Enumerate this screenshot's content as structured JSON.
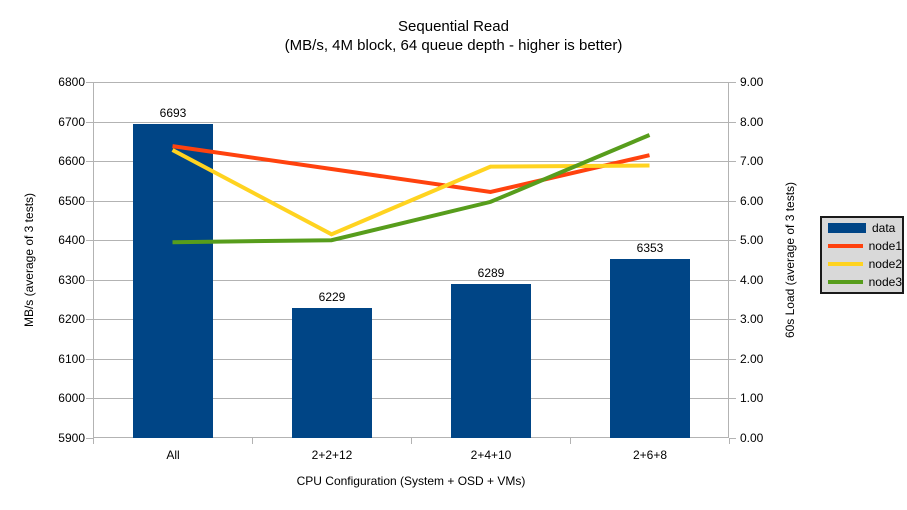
{
  "chart_data": {
    "type": "bar+line",
    "title": "Sequential Read",
    "subtitle": "(MB/s, 4M block, 64 queue depth - higher is better)",
    "categories": [
      "All",
      "2+2+12",
      "2+4+10",
      "2+6+8"
    ],
    "bar_series": {
      "name": "data",
      "axis": "left",
      "color": "#004586",
      "values": [
        6693,
        6229,
        6289,
        6353
      ],
      "data_labels": [
        "6693",
        "6229",
        "6289",
        "6353"
      ]
    },
    "line_series": [
      {
        "name": "node1",
        "axis": "right",
        "color": "#ff420e",
        "values": [
          7.38,
          6.8,
          6.22,
          7.15
        ]
      },
      {
        "name": "node2",
        "axis": "right",
        "color": "#ffd320",
        "values": [
          7.28,
          5.15,
          6.86,
          6.89
        ]
      },
      {
        "name": "node3",
        "axis": "right",
        "color": "#579d1c",
        "values": [
          4.95,
          5.0,
          5.97,
          7.66
        ]
      }
    ],
    "left_axis": {
      "label": "MB/s (average of 3 tests)",
      "min": 5900,
      "max": 6800,
      "step": 100,
      "tick_labels": [
        "5900",
        "6000",
        "6100",
        "6200",
        "6300",
        "6400",
        "6500",
        "6600",
        "6700",
        "6800"
      ]
    },
    "right_axis": {
      "label": "60s Load (average of 3 tests)",
      "min": 0,
      "max": 9,
      "step": 1,
      "tick_labels": [
        "0.00",
        "1.00",
        "2.00",
        "3.00",
        "4.00",
        "5.00",
        "6.00",
        "7.00",
        "8.00",
        "9.00"
      ]
    },
    "x_axis": {
      "label": "CPU Configuration (System + OSD + VMs)"
    },
    "grid": {
      "horizontal": true,
      "color": "#b3b3b3"
    },
    "legend": {
      "position": "right",
      "background": "#d9d9d9",
      "border_color": "#1a1a1a",
      "entries": [
        {
          "label": "data",
          "color": "#004586",
          "swatch": "bar"
        },
        {
          "label": "node1",
          "color": "#ff420e",
          "swatch": "line"
        },
        {
          "label": "node2",
          "color": "#ffd320",
          "swatch": "line"
        },
        {
          "label": "node3",
          "color": "#579d1c",
          "swatch": "line"
        }
      ]
    }
  }
}
